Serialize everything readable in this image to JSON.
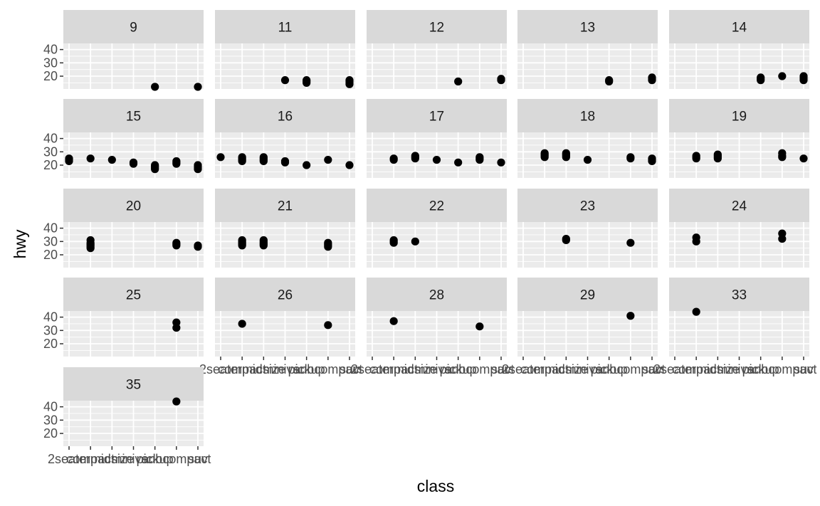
{
  "chart_data": {
    "type": "scatter",
    "title": "",
    "xlabel": "class",
    "ylabel": "hwy",
    "x_categories": [
      "2seater",
      "compact",
      "midsize",
      "minivan",
      "pickup",
      "subcompact",
      "suv"
    ],
    "x_tick_labels": [
      "2seater",
      "compact",
      "midsize",
      "minivan",
      "pickup",
      "subcompact",
      "suv"
    ],
    "y_ticks": [
      20,
      30,
      40
    ],
    "ylim": [
      10.4,
      44.6
    ],
    "facet_variable": "cty",
    "facet_columns": 5,
    "grid": true,
    "colors": {
      "panel_bg": "#ebebeb",
      "grid": "#ffffff",
      "strip_bg": "#d9d9d9",
      "point": "#000000"
    },
    "panels": [
      {
        "label": "9",
        "points": [
          [
            "pickup",
            12
          ],
          [
            "suv",
            12
          ]
        ]
      },
      {
        "label": "11",
        "points": [
          [
            "minivan",
            17
          ],
          [
            "pickup",
            15
          ],
          [
            "pickup",
            16
          ],
          [
            "pickup",
            17
          ],
          [
            "suv",
            14
          ],
          [
            "suv",
            15
          ],
          [
            "suv",
            16
          ],
          [
            "suv",
            17
          ]
        ]
      },
      {
        "label": "12",
        "points": [
          [
            "pickup",
            16
          ],
          [
            "suv",
            17
          ],
          [
            "suv",
            18
          ]
        ]
      },
      {
        "label": "13",
        "points": [
          [
            "pickup",
            16
          ],
          [
            "pickup",
            17
          ],
          [
            "suv",
            17
          ],
          [
            "suv",
            18
          ],
          [
            "suv",
            19
          ]
        ]
      },
      {
        "label": "14",
        "points": [
          [
            "pickup",
            17
          ],
          [
            "pickup",
            18
          ],
          [
            "pickup",
            19
          ],
          [
            "subcompact",
            20
          ],
          [
            "suv",
            17
          ],
          [
            "suv",
            18
          ],
          [
            "suv",
            19
          ],
          [
            "suv",
            20
          ]
        ]
      },
      {
        "label": "15",
        "points": [
          [
            "2seater",
            23
          ],
          [
            "2seater",
            24
          ],
          [
            "2seater",
            25
          ],
          [
            "compact",
            25
          ],
          [
            "midsize",
            24
          ],
          [
            "minivan",
            21
          ],
          [
            "minivan",
            22
          ],
          [
            "pickup",
            17
          ],
          [
            "pickup",
            18
          ],
          [
            "pickup",
            19
          ],
          [
            "pickup",
            20
          ],
          [
            "subcompact",
            21
          ],
          [
            "subcompact",
            22
          ],
          [
            "subcompact",
            23
          ],
          [
            "suv",
            17
          ],
          [
            "suv",
            18
          ],
          [
            "suv",
            19
          ],
          [
            "suv",
            20
          ]
        ]
      },
      {
        "label": "16",
        "points": [
          [
            "2seater",
            26
          ],
          [
            "compact",
            23
          ],
          [
            "compact",
            24
          ],
          [
            "compact",
            25
          ],
          [
            "compact",
            26
          ],
          [
            "midsize",
            23
          ],
          [
            "midsize",
            24
          ],
          [
            "midsize",
            25
          ],
          [
            "midsize",
            26
          ],
          [
            "minivan",
            22
          ],
          [
            "minivan",
            23
          ],
          [
            "pickup",
            20
          ],
          [
            "subcompact",
            24
          ],
          [
            "suv",
            20
          ]
        ]
      },
      {
        "label": "17",
        "points": [
          [
            "compact",
            24
          ],
          [
            "compact",
            25
          ],
          [
            "midsize",
            25
          ],
          [
            "midsize",
            26
          ],
          [
            "midsize",
            27
          ],
          [
            "minivan",
            24
          ],
          [
            "pickup",
            22
          ],
          [
            "subcompact",
            24
          ],
          [
            "subcompact",
            25
          ],
          [
            "subcompact",
            26
          ],
          [
            "suv",
            22
          ]
        ]
      },
      {
        "label": "18",
        "points": [
          [
            "compact",
            26
          ],
          [
            "compact",
            27
          ],
          [
            "compact",
            28
          ],
          [
            "compact",
            29
          ],
          [
            "midsize",
            26
          ],
          [
            "midsize",
            27
          ],
          [
            "midsize",
            28
          ],
          [
            "midsize",
            29
          ],
          [
            "minivan",
            24
          ],
          [
            "subcompact",
            25
          ],
          [
            "subcompact",
            26
          ],
          [
            "suv",
            23
          ],
          [
            "suv",
            24
          ],
          [
            "suv",
            25
          ]
        ]
      },
      {
        "label": "19",
        "points": [
          [
            "compact",
            25
          ],
          [
            "compact",
            26
          ],
          [
            "compact",
            27
          ],
          [
            "midsize",
            25
          ],
          [
            "midsize",
            26
          ],
          [
            "midsize",
            27
          ],
          [
            "midsize",
            28
          ],
          [
            "subcompact",
            26
          ],
          [
            "subcompact",
            27
          ],
          [
            "subcompact",
            29
          ],
          [
            "suv",
            25
          ]
        ]
      },
      {
        "label": "20",
        "points": [
          [
            "compact",
            25
          ],
          [
            "compact",
            26
          ],
          [
            "compact",
            27
          ],
          [
            "compact",
            28
          ],
          [
            "compact",
            29
          ],
          [
            "compact",
            31
          ],
          [
            "subcompact",
            27
          ],
          [
            "subcompact",
            28
          ],
          [
            "subcompact",
            29
          ],
          [
            "suv",
            26
          ],
          [
            "suv",
            27
          ]
        ]
      },
      {
        "label": "21",
        "points": [
          [
            "compact",
            27
          ],
          [
            "compact",
            28
          ],
          [
            "compact",
            29
          ],
          [
            "compact",
            30
          ],
          [
            "compact",
            31
          ],
          [
            "midsize",
            27
          ],
          [
            "midsize",
            28
          ],
          [
            "midsize",
            29
          ],
          [
            "midsize",
            30
          ],
          [
            "midsize",
            31
          ],
          [
            "subcompact",
            26
          ],
          [
            "subcompact",
            27
          ],
          [
            "subcompact",
            28
          ],
          [
            "subcompact",
            29
          ]
        ]
      },
      {
        "label": "22",
        "points": [
          [
            "compact",
            29
          ],
          [
            "compact",
            30
          ],
          [
            "compact",
            31
          ],
          [
            "midsize",
            30
          ]
        ]
      },
      {
        "label": "23",
        "points": [
          [
            "midsize",
            31
          ],
          [
            "midsize",
            32
          ],
          [
            "subcompact",
            29
          ]
        ]
      },
      {
        "label": "24",
        "points": [
          [
            "compact",
            30
          ],
          [
            "compact",
            33
          ],
          [
            "subcompact",
            32
          ],
          [
            "subcompact",
            36
          ]
        ]
      },
      {
        "label": "25",
        "points": [
          [
            "subcompact",
            32
          ],
          [
            "subcompact",
            36
          ]
        ]
      },
      {
        "label": "26",
        "points": [
          [
            "compact",
            35
          ],
          [
            "subcompact",
            34
          ]
        ]
      },
      {
        "label": "28",
        "points": [
          [
            "compact",
            37
          ],
          [
            "subcompact",
            33
          ]
        ]
      },
      {
        "label": "29",
        "points": [
          [
            "subcompact",
            41
          ]
        ]
      },
      {
        "label": "33",
        "points": [
          [
            "compact",
            44
          ]
        ]
      },
      {
        "label": "35",
        "points": [
          [
            "subcompact",
            44
          ]
        ]
      }
    ]
  }
}
